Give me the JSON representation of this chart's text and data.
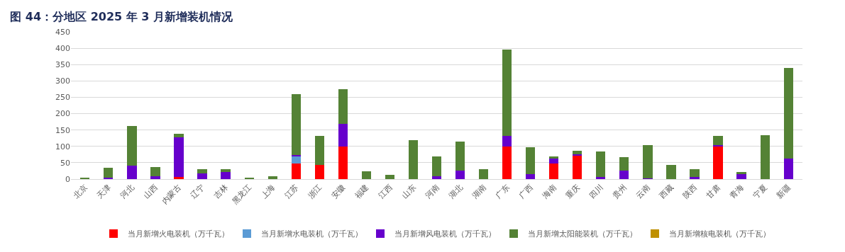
{
  "chart_data": {
    "type": "bar",
    "title": "图 44：分地区 2025 年 3 月新增装机情况",
    "stacked": true,
    "categories": [
      "北京",
      "天津",
      "河北",
      "山西",
      "内蒙古",
      "辽宁",
      "吉林",
      "黑龙江",
      "上海",
      "江苏",
      "浙江",
      "安徽",
      "福建",
      "江西",
      "山东",
      "河南",
      "湖北",
      "湖南",
      "广东",
      "广西",
      "海南",
      "重庆",
      "四川",
      "贵州",
      "云南",
      "西藏",
      "陕西",
      "甘肃",
      "青海",
      "宁夏",
      "新疆"
    ],
    "series": [
      {
        "name": "当月新增火电装机（万千瓦）",
        "color": "#ff0000",
        "values": [
          0,
          0,
          0,
          0,
          7,
          0,
          0,
          0,
          0,
          47,
          43,
          100,
          0,
          0,
          0,
          0,
          0,
          0,
          100,
          0,
          47,
          72,
          0,
          0,
          0,
          0,
          0,
          100,
          0,
          0,
          0
        ]
      },
      {
        "name": "当月新增水电装机（万千瓦）",
        "color": "#5b9bd5",
        "values": [
          0,
          0,
          0,
          0,
          0,
          0,
          0,
          0,
          0,
          23,
          0,
          0,
          0,
          0,
          0,
          0,
          0,
          0,
          0,
          0,
          0,
          0,
          0,
          0,
          0,
          0,
          0,
          0,
          0,
          0,
          0
        ]
      },
      {
        "name": "当月新增风电装机（万千瓦）",
        "color": "#6600cc",
        "values": [
          0,
          5,
          42,
          8,
          120,
          18,
          22,
          0,
          0,
          4,
          0,
          68,
          0,
          0,
          0,
          8,
          25,
          0,
          31,
          16,
          15,
          4,
          6,
          27,
          3,
          0,
          6,
          4,
          17,
          0,
          63
        ]
      },
      {
        "name": "当月新增太阳能装机（万千瓦）",
        "color": "#548235",
        "values": [
          4,
          29,
          120,
          29,
          11,
          12,
          8,
          3,
          9,
          186,
          89,
          107,
          23,
          13,
          118,
          61,
          89,
          31,
          264,
          81,
          8,
          10,
          79,
          41,
          101,
          43,
          25,
          27,
          4,
          135,
          277
        ]
      },
      {
        "name": "当月新增核电装机（万千瓦）",
        "color": "#bf9000",
        "values": [
          0,
          0,
          0,
          0,
          0,
          0,
          0,
          0,
          0,
          0,
          0,
          0,
          0,
          0,
          0,
          0,
          0,
          0,
          0,
          0,
          0,
          0,
          0,
          0,
          0,
          0,
          0,
          0,
          0,
          0,
          0
        ]
      }
    ],
    "ylim": [
      0,
      450
    ],
    "yticks": [
      0,
      50,
      100,
      150,
      200,
      250,
      300,
      350,
      400,
      450
    ],
    "grid": "y",
    "legend": "bottom"
  }
}
